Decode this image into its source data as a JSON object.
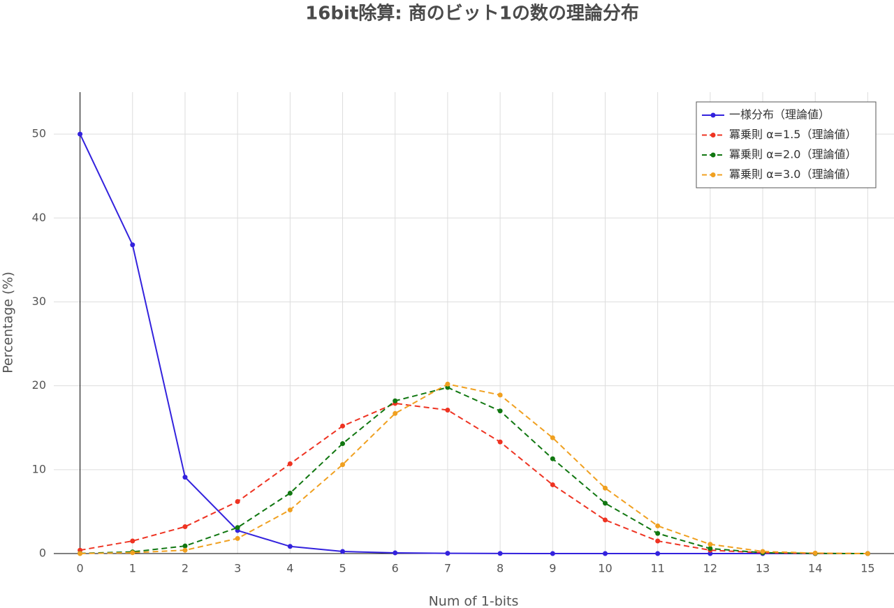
{
  "chart_data": {
    "type": "line",
    "title": "16bit除算: 商のビット1の数の理論分布",
    "x_label": "Num of 1-bits",
    "y_label": "Percentage (%)",
    "x": [
      0,
      1,
      2,
      3,
      4,
      5,
      6,
      7,
      8,
      9,
      10,
      11,
      12,
      13,
      14,
      15
    ],
    "series": [
      {
        "name": "一様分布（理論値）",
        "color": "#3322dd",
        "dash": false,
        "values": [
          50,
          36.8,
          9.1,
          2.75,
          0.85,
          0.25,
          0.08,
          0.03,
          0.01,
          0,
          0,
          0,
          0,
          0,
          0,
          0
        ]
      },
      {
        "name": "冪乗則 α=1.5（理論値）",
        "color": "#ee3322",
        "dash": true,
        "values": [
          0.4,
          1.5,
          3.2,
          6.2,
          10.7,
          15.2,
          17.9,
          17.1,
          13.3,
          8.2,
          4.0,
          1.5,
          0.4,
          0.1,
          0.02,
          0
        ]
      },
      {
        "name": "冪乗則 α=2.0（理論値）",
        "color": "#117711",
        "dash": true,
        "values": [
          0.02,
          0.2,
          0.9,
          3.1,
          7.2,
          13.1,
          18.2,
          19.8,
          17.0,
          11.3,
          6.0,
          2.4,
          0.6,
          0.1,
          0.01,
          0
        ]
      },
      {
        "name": "冪乗則 α=3.0（理論値）",
        "color": "#f0a020",
        "dash": true,
        "values": [
          0,
          0.1,
          0.4,
          1.8,
          5.2,
          10.6,
          16.7,
          20.2,
          18.9,
          13.8,
          7.8,
          3.3,
          1.1,
          0.25,
          0.05,
          0
        ]
      }
    ],
    "xlim": [
      -0.5,
      15.5
    ],
    "ylim": [
      0,
      55
    ],
    "xticks": [
      0,
      1,
      2,
      3,
      4,
      5,
      6,
      7,
      8,
      9,
      10,
      11,
      12,
      13,
      14,
      15
    ],
    "yticks": [
      0,
      10,
      20,
      30,
      40,
      50
    ],
    "grid": true,
    "legend": "top-right"
  }
}
